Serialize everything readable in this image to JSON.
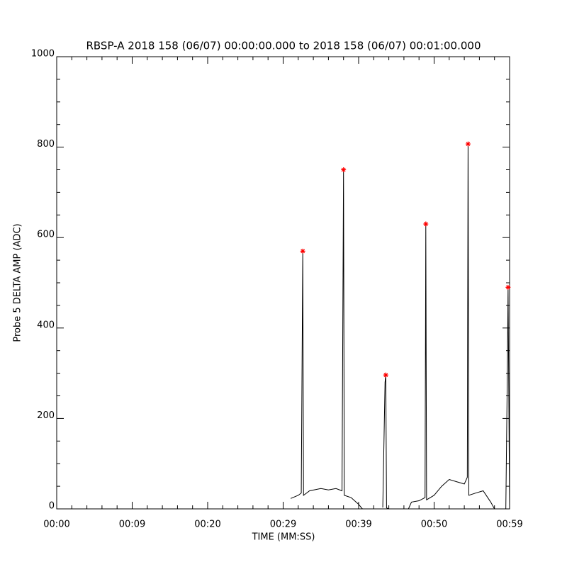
{
  "chart_data": {
    "type": "line",
    "title": "RBSP-A 2018 158 (06/07) 00:00:00.000 to 2018 158 (06/07) 00:01:00.000",
    "x_label": "TIME (MM:SS)",
    "y_label": "Probe 5 DELTA AMP (ADC)",
    "xlim": [
      0,
      60
    ],
    "ylim": [
      0,
      1000
    ],
    "xticks": [
      {
        "value": 0,
        "label": "00:00"
      },
      {
        "value": 10,
        "label": "00:09"
      },
      {
        "value": 20,
        "label": "00:20"
      },
      {
        "value": 30,
        "label": "00:29"
      },
      {
        "value": 40,
        "label": "00:39"
      },
      {
        "value": 50,
        "label": "00:50"
      },
      {
        "value": 60,
        "label": "00:59"
      }
    ],
    "yticks": [
      0,
      200,
      400,
      600,
      800,
      1000
    ],
    "xminor": 5,
    "yminor": 4,
    "line": {
      "color": "#000000",
      "x": [
        31.0,
        32.0,
        32.4,
        32.6,
        32.7,
        33.5,
        35.0,
        36.0,
        37.0,
        37.8,
        38.0,
        38.1,
        39.0,
        40.0,
        40.5,
        null,
        43.2,
        43.5,
        43.6,
        43.7,
        44.0,
        null,
        46.6,
        47.0,
        48.0,
        48.8,
        48.9,
        49.0,
        50.0,
        51.0,
        52.0,
        53.0,
        54.0,
        54.4,
        54.5,
        54.6,
        55.5,
        56.5,
        57.5,
        58.0,
        59.5,
        59.7,
        59.8,
        60.0
      ],
      "values": [
        23,
        30,
        35,
        570,
        30,
        40,
        45,
        42,
        45,
        40,
        750,
        30,
        25,
        10,
        0,
        null,
        3,
        280,
        296,
        2,
        0,
        null,
        0,
        15,
        18,
        25,
        630,
        20,
        30,
        50,
        65,
        60,
        55,
        70,
        807,
        30,
        35,
        40,
        15,
        0,
        0,
        300,
        490,
        0
      ]
    },
    "peaks": {
      "color": "#ff0000",
      "x": [
        32.6,
        38.0,
        43.6,
        48.9,
        54.5,
        59.8
      ],
      "values": [
        570,
        750,
        296,
        630,
        807,
        490
      ]
    }
  }
}
